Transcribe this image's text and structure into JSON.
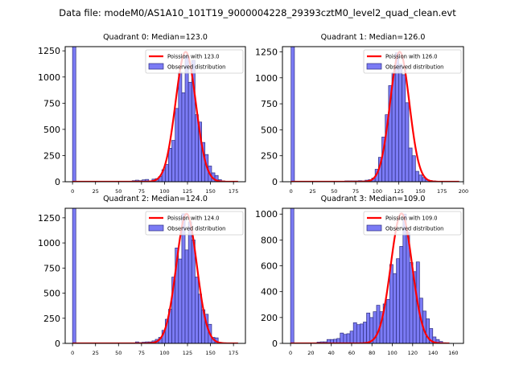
{
  "figure": {
    "suptitle": "Data file: modeM0/AS1A10_101T19_9000004228_29393cztM0_level2_quad_clean.evt"
  },
  "colors": {
    "bar_fill": "#7b7bf5",
    "bar_edge": "#2e2e80",
    "poisson_line": "#ff0000"
  },
  "chart_data": [
    {
      "type": "bar",
      "title": "Quadrant 0: Median=123.0",
      "xlabel": "",
      "ylabel": "",
      "xlim": [
        -8,
        188
      ],
      "ylim": [
        0,
        1290
      ],
      "xticks": [
        0,
        25,
        50,
        75,
        100,
        125,
        150,
        175
      ],
      "yticks": [
        0,
        250,
        500,
        750,
        1000,
        1250
      ],
      "bin_width": 3.6,
      "bin_starts": [
        0,
        64.8,
        68.4,
        72,
        75.6,
        79.2,
        82.8,
        86.4,
        90,
        93.6,
        97.2,
        100.8,
        104.4,
        108,
        111.6,
        115.2,
        118.8,
        122.4,
        126,
        129.6,
        133.2,
        136.8,
        140.4,
        144,
        147.6,
        151.2,
        154.8,
        158.4,
        162,
        165.6,
        169.2,
        172.8,
        176.4
      ],
      "counts": [
        1400,
        10,
        15,
        10,
        18,
        22,
        5,
        25,
        30,
        50,
        115,
        165,
        320,
        395,
        700,
        1045,
        850,
        1205,
        950,
        1160,
        640,
        570,
        375,
        260,
        150,
        85,
        60,
        20,
        8,
        5,
        3,
        2,
        1
      ],
      "series": [
        {
          "name": "Poission with 123.0",
          "kind": "line",
          "mean": 123.0,
          "peak": 1240
        },
        {
          "name": "Observed distribution",
          "kind": "histogram"
        }
      ],
      "legend": "upper-right"
    },
    {
      "type": "bar",
      "title": "Quadrant 1: Median=126.0",
      "xlabel": "",
      "ylabel": "",
      "xlim": [
        -10,
        200
      ],
      "ylim": [
        0,
        1300
      ],
      "xticks": [
        0,
        25,
        50,
        75,
        100,
        125,
        150,
        175,
        200
      ],
      "yticks": [
        0,
        250,
        500,
        750,
        1000,
        1250
      ],
      "bin_width": 3.9,
      "bin_starts": [
        0,
        62.4,
        66.3,
        70.2,
        74.1,
        78,
        81.9,
        85.8,
        89.7,
        93.6,
        97.5,
        101.4,
        105.3,
        109.2,
        113.1,
        117,
        120.9,
        124.8,
        128.7,
        132.6,
        136.5,
        140.4,
        144.3,
        148.2,
        152.1,
        156,
        159.9,
        163.8,
        167.7,
        171.6,
        175.5,
        179.4,
        183.3,
        187.2,
        191.1
      ],
      "counts": [
        1400,
        8,
        8,
        8,
        8,
        10,
        8,
        15,
        20,
        35,
        120,
        235,
        430,
        645,
        925,
        1050,
        1240,
        1130,
        1030,
        760,
        325,
        250,
        100,
        65,
        40,
        20,
        12,
        8,
        5,
        4,
        3,
        2,
        2,
        1,
        1
      ],
      "series": [
        {
          "name": "Poission with 126.0",
          "kind": "line",
          "mean": 126.0,
          "peak": 1250
        },
        {
          "name": "Observed distribution",
          "kind": "histogram"
        }
      ],
      "legend": "upper-right"
    },
    {
      "type": "bar",
      "title": "Quadrant 2: Median=124.0",
      "xlabel": "",
      "ylabel": "",
      "xlim": [
        -8,
        188
      ],
      "ylim": [
        0,
        1345
      ],
      "xticks": [
        0,
        25,
        50,
        75,
        100,
        125,
        150,
        175
      ],
      "yticks": [
        0,
        250,
        500,
        750,
        1000,
        1250
      ],
      "bin_width": 3.6,
      "bin_starts": [
        0,
        68.4,
        72,
        75.6,
        79.2,
        82.8,
        86.4,
        90,
        93.6,
        97.2,
        100.8,
        104.4,
        108,
        111.6,
        115.2,
        118.8,
        122.4,
        126,
        129.6,
        133.2,
        136.8,
        140.4,
        144,
        147.6,
        151.2,
        154.8,
        158.4,
        162,
        165.6,
        169.2,
        172.8,
        176.4
      ],
      "counts": [
        1500,
        15,
        8,
        12,
        15,
        15,
        25,
        40,
        60,
        130,
        240,
        340,
        660,
        950,
        840,
        1290,
        930,
        1210,
        1030,
        660,
        490,
        335,
        290,
        190,
        60,
        55,
        10,
        5,
        3,
        2,
        2,
        1
      ],
      "series": [
        {
          "name": "Poission with 124.0",
          "kind": "line",
          "mean": 124.0,
          "peak": 1290
        },
        {
          "name": "Observed distribution",
          "kind": "histogram"
        }
      ],
      "legend": "upper-right"
    },
    {
      "type": "bar",
      "title": "Quadrant 3: Median=109.0",
      "xlabel": "",
      "ylabel": "",
      "xlim": [
        -8,
        170
      ],
      "ylim": [
        0,
        1045
      ],
      "xticks": [
        0,
        20,
        40,
        60,
        80,
        100,
        120,
        140,
        160
      ],
      "yticks": [
        0,
        200,
        400,
        600,
        800,
        1000
      ],
      "bin_width": 3.25,
      "bin_starts": [
        0,
        26,
        29.25,
        32.5,
        35.75,
        39,
        42.25,
        45.5,
        48.75,
        52,
        55.25,
        58.5,
        61.75,
        65,
        68.25,
        71.5,
        74.75,
        78,
        81.25,
        84.5,
        87.75,
        91,
        94.25,
        97.5,
        100.75,
        104,
        107.25,
        110.5,
        113.75,
        117,
        120.25,
        123.5,
        126.75,
        130,
        133.25,
        136.5,
        139.75,
        143,
        146.25,
        149.5,
        152.75
      ],
      "counts": [
        1200,
        10,
        12,
        12,
        30,
        30,
        32,
        38,
        80,
        70,
        75,
        95,
        160,
        145,
        150,
        165,
        235,
        200,
        245,
        295,
        245,
        305,
        340,
        610,
        540,
        655,
        750,
        1000,
        860,
        625,
        555,
        630,
        350,
        250,
        190,
        115,
        50,
        30,
        15,
        5,
        3
      ],
      "series": [
        {
          "name": "Poission with 109.0",
          "kind": "line",
          "mean": 109.0,
          "peak": 1005
        },
        {
          "name": "Observed distribution",
          "kind": "histogram"
        }
      ],
      "legend": "upper-right"
    }
  ]
}
